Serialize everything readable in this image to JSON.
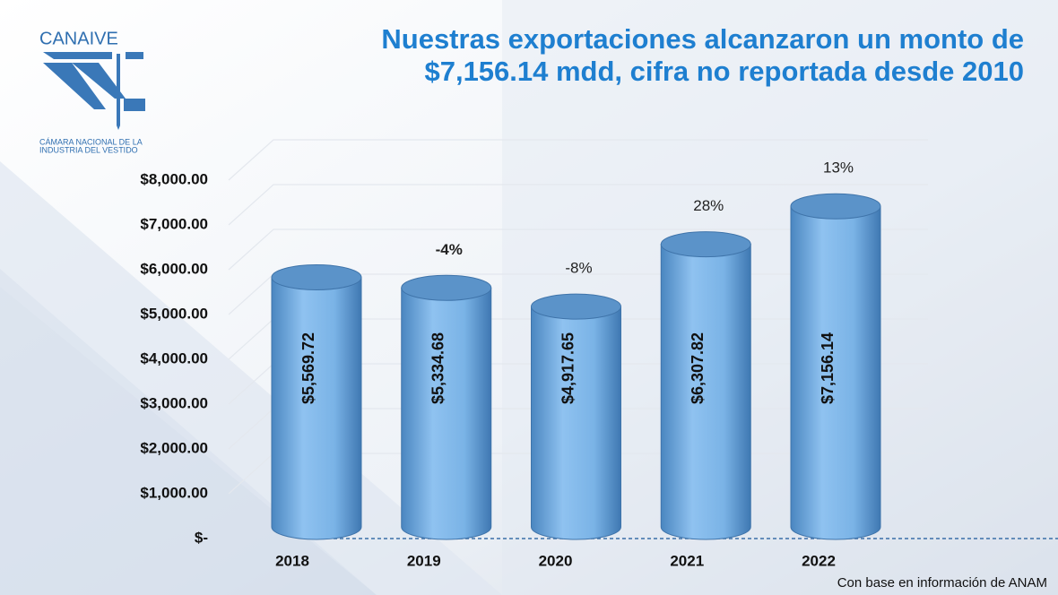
{
  "logo": {
    "name": "CANAIVE",
    "subtitle_lines": [
      "CÁMARA NACIONAL DE LA",
      "INDUSTRIA DEL VESTIDO"
    ]
  },
  "chart_data": {
    "type": "bar",
    "title_lines": [
      "Nuestras exportaciones alcanzaron un monto de",
      "$7,156.14 mdd, cifra no reportada desde 2010"
    ],
    "categories": [
      "2018",
      "2019",
      "2020",
      "2021",
      "2022"
    ],
    "values": [
      5569.72,
      5334.68,
      4917.65,
      6307.82,
      7156.14
    ],
    "value_labels": [
      "$5,569.72",
      "$5,334.68",
      "$4,917.65",
      "$6,307.82",
      "$7,156.14"
    ],
    "growth": [
      null,
      -4,
      -8,
      28,
      13
    ],
    "growth_labels": [
      null,
      "-4%",
      "-8%",
      "28%",
      "13%"
    ],
    "color": "#6fa8dc",
    "ylim": [
      0,
      8000
    ],
    "yticks": [
      {
        "value": 0,
        "label": "$-"
      },
      {
        "value": 1000,
        "label": "$1,000.00"
      },
      {
        "value": 2000,
        "label": "$2,000.00"
      },
      {
        "value": 3000,
        "label": "$3,000.00"
      },
      {
        "value": 4000,
        "label": "$4,000.00"
      },
      {
        "value": 5000,
        "label": "$5,000.00"
      },
      {
        "value": 6000,
        "label": "$6,000.00"
      },
      {
        "value": 7000,
        "label": "$7,000.00"
      },
      {
        "value": 8000,
        "label": "$8,000.00"
      }
    ],
    "grid": true,
    "source": "Con base en información de ANAM"
  }
}
